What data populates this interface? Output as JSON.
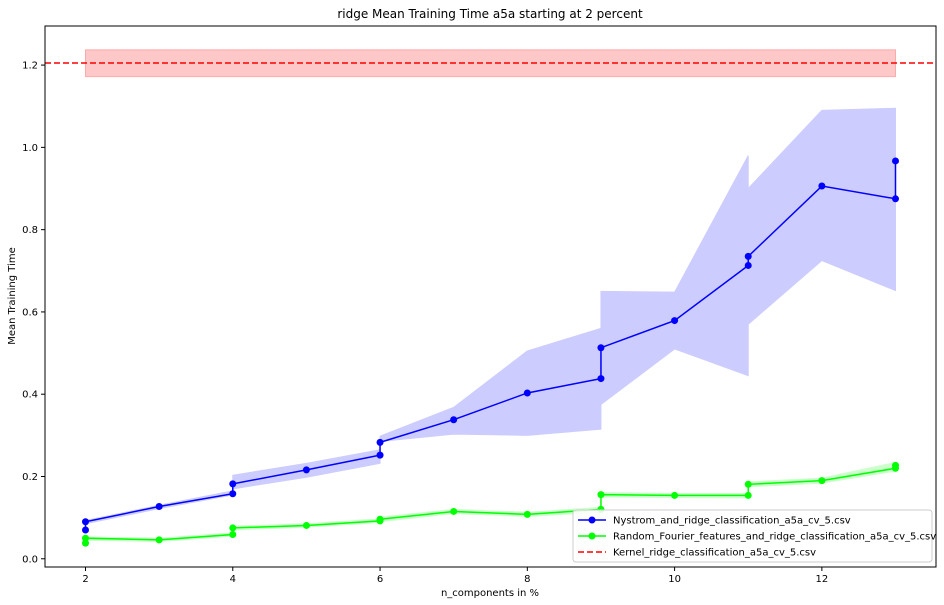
{
  "chart_data": {
    "type": "line",
    "title": "ridge Mean Training Time a5a starting at 2 percent",
    "xlabel": "n_components in %",
    "ylabel": "Mean Training Time",
    "xlim": [
      1.45,
      13.55
    ],
    "ylim": [
      -0.02,
      1.295
    ],
    "xticks": [
      2,
      4,
      6,
      8,
      10,
      12
    ],
    "yticks": [
      0.0,
      0.2,
      0.4,
      0.6,
      0.8,
      1.0,
      1.2
    ],
    "xtick_labels": [
      "2",
      "4",
      "6",
      "8",
      "10",
      "12"
    ],
    "ytick_labels": [
      "0.0",
      "0.2",
      "0.4",
      "0.6",
      "0.8",
      "1.0",
      "1.2"
    ],
    "grid": false,
    "legend_position": "lower-right",
    "series": [
      {
        "name": "Nystrom_and_ridge_classification_a5a_cv_5.csv",
        "color": "#0000ff",
        "band_color": "#ccccff",
        "x": [
          2,
          2,
          3,
          4,
          4,
          5,
          6,
          6,
          7,
          8,
          9,
          9,
          10,
          11,
          11,
          12,
          13,
          13
        ],
        "y": [
          0.07,
          0.09,
          0.127,
          0.158,
          0.182,
          0.216,
          0.252,
          0.283,
          0.338,
          0.403,
          0.438,
          0.513,
          0.579,
          0.713,
          0.735,
          0.906,
          0.875,
          0.967
        ],
        "band_x": [
          2,
          3,
          4,
          4,
          5,
          6,
          6,
          7,
          8,
          9,
          9,
          10,
          11,
          11,
          12,
          13
        ],
        "band_lower": [
          0.085,
          0.122,
          0.155,
          0.17,
          0.198,
          0.232,
          0.285,
          0.303,
          0.3,
          0.315,
          0.375,
          0.51,
          0.445,
          0.57,
          0.725,
          0.652
        ],
        "band_upper": [
          0.093,
          0.13,
          0.165,
          0.203,
          0.232,
          0.265,
          0.298,
          0.368,
          0.505,
          0.56,
          0.65,
          0.648,
          0.98,
          0.9,
          1.09,
          1.095
        ]
      },
      {
        "name": "Random_Fourier_features_and_ridge_classification_a5a_cv_5.csv",
        "color": "#00ff00",
        "band_color": "#ccffcc",
        "x": [
          2,
          2,
          3,
          4,
          4,
          5,
          6,
          6,
          7,
          8,
          9,
          9,
          10,
          11,
          11,
          12,
          13,
          13
        ],
        "y": [
          0.038,
          0.05,
          0.046,
          0.059,
          0.075,
          0.081,
          0.092,
          0.096,
          0.115,
          0.108,
          0.12,
          0.156,
          0.154,
          0.154,
          0.181,
          0.19,
          0.22,
          0.227
        ],
        "band_x": [
          2,
          3,
          4,
          4,
          5,
          6,
          6,
          7,
          8,
          9,
          9,
          10,
          11,
          11,
          12,
          13
        ],
        "band_lower": [
          0.045,
          0.042,
          0.055,
          0.07,
          0.077,
          0.088,
          0.09,
          0.11,
          0.103,
          0.113,
          0.15,
          0.149,
          0.148,
          0.175,
          0.184,
          0.213
        ],
        "band_upper": [
          0.053,
          0.05,
          0.063,
          0.079,
          0.085,
          0.097,
          0.101,
          0.12,
          0.113,
          0.125,
          0.161,
          0.159,
          0.159,
          0.187,
          0.196,
          0.234
        ]
      }
    ],
    "reference": {
      "name": "Kernel_ridge_classification_a5a_cv_5.csv",
      "color": "#ff0000",
      "band_color": "#ffc8c8",
      "y": 1.205,
      "band_lower": 1.172,
      "band_upper": 1.237,
      "band_x": [
        2,
        13
      ]
    }
  }
}
